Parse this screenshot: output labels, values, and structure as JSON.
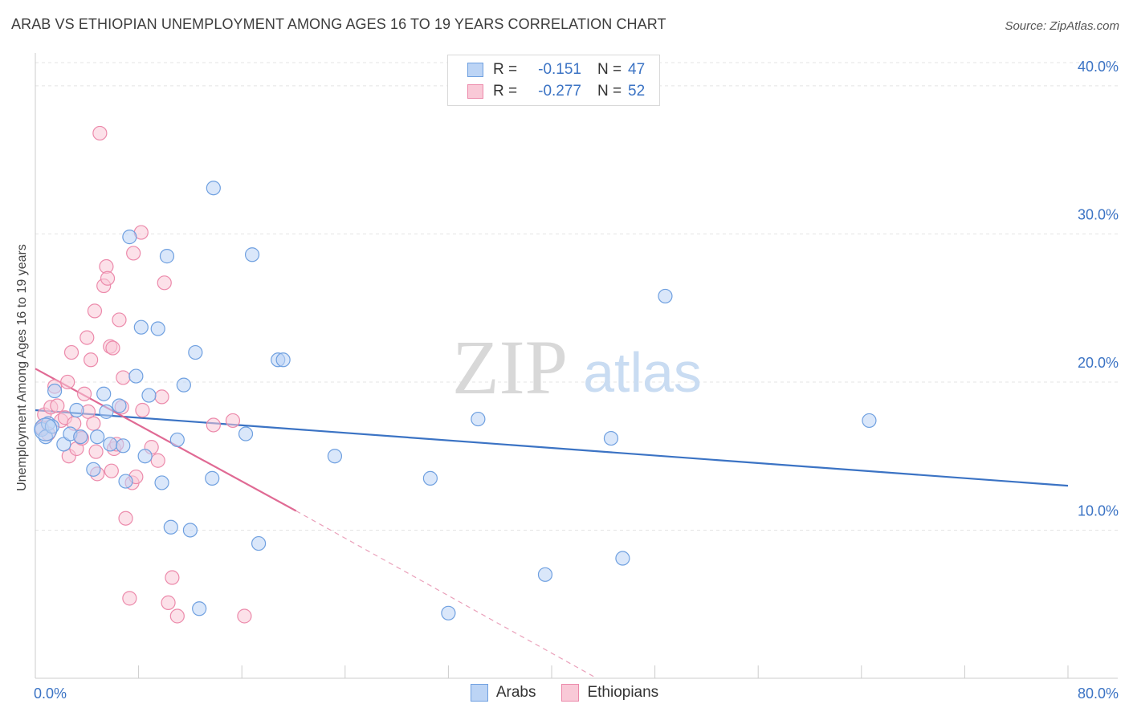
{
  "title": "ARAB VS ETHIOPIAN UNEMPLOYMENT AMONG AGES 16 TO 19 YEARS CORRELATION CHART",
  "source": "Source: ZipAtlas.com",
  "watermark": {
    "zip": "ZIP",
    "atlas": "atlas"
  },
  "legend": {
    "rows": [
      {
        "r_label": "R =",
        "r_value": "-0.151",
        "n_label": "N =",
        "n_value": "47",
        "color": "#6fa0e0",
        "fill": "#bcd4f5"
      },
      {
        "r_label": "R =",
        "r_value": "-0.277",
        "n_label": "N =",
        "n_value": "52",
        "color": "#ec8aab",
        "fill": "#f9c9d7"
      }
    ]
  },
  "bottom_legend": {
    "arabs": "Arabs",
    "ethiopians": "Ethiopians"
  },
  "chart_data": {
    "type": "scatter",
    "title": "ARAB VS ETHIOPIAN UNEMPLOYMENT AMONG AGES 16 TO 19 YEARS CORRELATION CHART",
    "ylabel": "Unemployment Among Ages 16 to 19 years",
    "xlim": [
      0,
      80
    ],
    "ylim": [
      0,
      42
    ],
    "x_ticks": [
      "0.0%",
      "80.0%"
    ],
    "y_ticks": [
      {
        "value": 10,
        "label": "10.0%"
      },
      {
        "value": 20,
        "label": "20.0%"
      },
      {
        "value": 30,
        "label": "30.0%"
      },
      {
        "value": 40,
        "label": "40.0%"
      }
    ],
    "colors": {
      "arabs": "#3b73c4",
      "arabs_fill": "#bcd4f5",
      "ethiopians": "#e06a94",
      "ethiopians_fill": "#f9c9d7"
    },
    "series": [
      {
        "name": "Arabs",
        "points": [
          [
            0.5,
            16.8
          ],
          [
            0.8,
            16.3
          ],
          [
            1.0,
            17.2
          ],
          [
            1.3,
            17.0
          ],
          [
            1.5,
            19.4
          ],
          [
            2.2,
            15.8
          ],
          [
            2.7,
            16.5
          ],
          [
            3.2,
            18.1
          ],
          [
            3.5,
            16.3
          ],
          [
            4.5,
            14.1
          ],
          [
            4.8,
            16.3
          ],
          [
            5.3,
            19.2
          ],
          [
            5.5,
            18.0
          ],
          [
            5.8,
            15.8
          ],
          [
            6.5,
            18.4
          ],
          [
            6.8,
            15.7
          ],
          [
            7.0,
            13.3
          ],
          [
            7.3,
            29.8
          ],
          [
            7.8,
            20.4
          ],
          [
            8.2,
            23.7
          ],
          [
            8.5,
            15.0
          ],
          [
            8.8,
            19.1
          ],
          [
            9.5,
            23.6
          ],
          [
            9.8,
            13.2
          ],
          [
            10.2,
            28.5
          ],
          [
            10.5,
            10.2
          ],
          [
            11.0,
            16.1
          ],
          [
            11.5,
            19.8
          ],
          [
            12.0,
            10.0
          ],
          [
            12.4,
            22.0
          ],
          [
            12.7,
            4.7
          ],
          [
            13.7,
            13.5
          ],
          [
            13.8,
            33.1
          ],
          [
            16.3,
            16.5
          ],
          [
            16.8,
            28.6
          ],
          [
            17.3,
            9.1
          ],
          [
            18.8,
            21.5
          ],
          [
            19.2,
            21.5
          ],
          [
            23.2,
            15.0
          ],
          [
            30.6,
            13.5
          ],
          [
            32.0,
            4.4
          ],
          [
            34.3,
            17.5
          ],
          [
            39.5,
            7.0
          ],
          [
            44.6,
            16.2
          ],
          [
            45.5,
            8.1
          ],
          [
            48.8,
            25.8
          ],
          [
            64.6,
            17.4
          ]
        ]
      },
      {
        "name": "Ethiopians",
        "points": [
          [
            0.5,
            16.9
          ],
          [
            0.7,
            17.8
          ],
          [
            1.0,
            16.5
          ],
          [
            1.2,
            18.3
          ],
          [
            1.5,
            19.7
          ],
          [
            1.7,
            18.4
          ],
          [
            2.0,
            17.4
          ],
          [
            2.3,
            17.6
          ],
          [
            2.5,
            20.0
          ],
          [
            2.6,
            15.0
          ],
          [
            2.8,
            22.0
          ],
          [
            3.0,
            17.2
          ],
          [
            3.2,
            15.5
          ],
          [
            3.5,
            16.3
          ],
          [
            3.6,
            16.2
          ],
          [
            3.8,
            19.2
          ],
          [
            4.0,
            23.0
          ],
          [
            4.1,
            18.0
          ],
          [
            4.3,
            21.5
          ],
          [
            4.5,
            17.2
          ],
          [
            4.6,
            24.8
          ],
          [
            4.7,
            15.3
          ],
          [
            4.8,
            13.8
          ],
          [
            5.0,
            36.8
          ],
          [
            5.3,
            26.5
          ],
          [
            5.5,
            27.8
          ],
          [
            5.6,
            27.0
          ],
          [
            5.8,
            22.4
          ],
          [
            5.9,
            14.0
          ],
          [
            6.0,
            22.3
          ],
          [
            6.1,
            15.5
          ],
          [
            6.3,
            15.8
          ],
          [
            6.5,
            24.2
          ],
          [
            6.7,
            18.3
          ],
          [
            6.8,
            20.3
          ],
          [
            7.0,
            10.8
          ],
          [
            7.3,
            5.4
          ],
          [
            7.5,
            13.2
          ],
          [
            7.6,
            28.7
          ],
          [
            7.8,
            13.6
          ],
          [
            8.2,
            30.1
          ],
          [
            8.3,
            18.1
          ],
          [
            9.0,
            15.6
          ],
          [
            9.5,
            14.7
          ],
          [
            9.8,
            19.0
          ],
          [
            10.0,
            26.7
          ],
          [
            10.3,
            5.1
          ],
          [
            10.6,
            6.8
          ],
          [
            11.0,
            4.2
          ],
          [
            13.8,
            17.1
          ],
          [
            15.3,
            17.4
          ],
          [
            16.2,
            4.2
          ]
        ]
      }
    ],
    "trendlines": [
      {
        "series": "Arabs",
        "x": [
          0,
          80
        ],
        "y": [
          18.1,
          13.0
        ]
      },
      {
        "series": "Ethiopians",
        "x": [
          0,
          20.2
        ],
        "y": [
          20.9,
          11.3
        ],
        "dashed_extension": {
          "x": [
            20.2,
            43.5
          ],
          "y": [
            11.3,
            0
          ]
        }
      }
    ],
    "grid": true,
    "legend_position": "top-center"
  }
}
